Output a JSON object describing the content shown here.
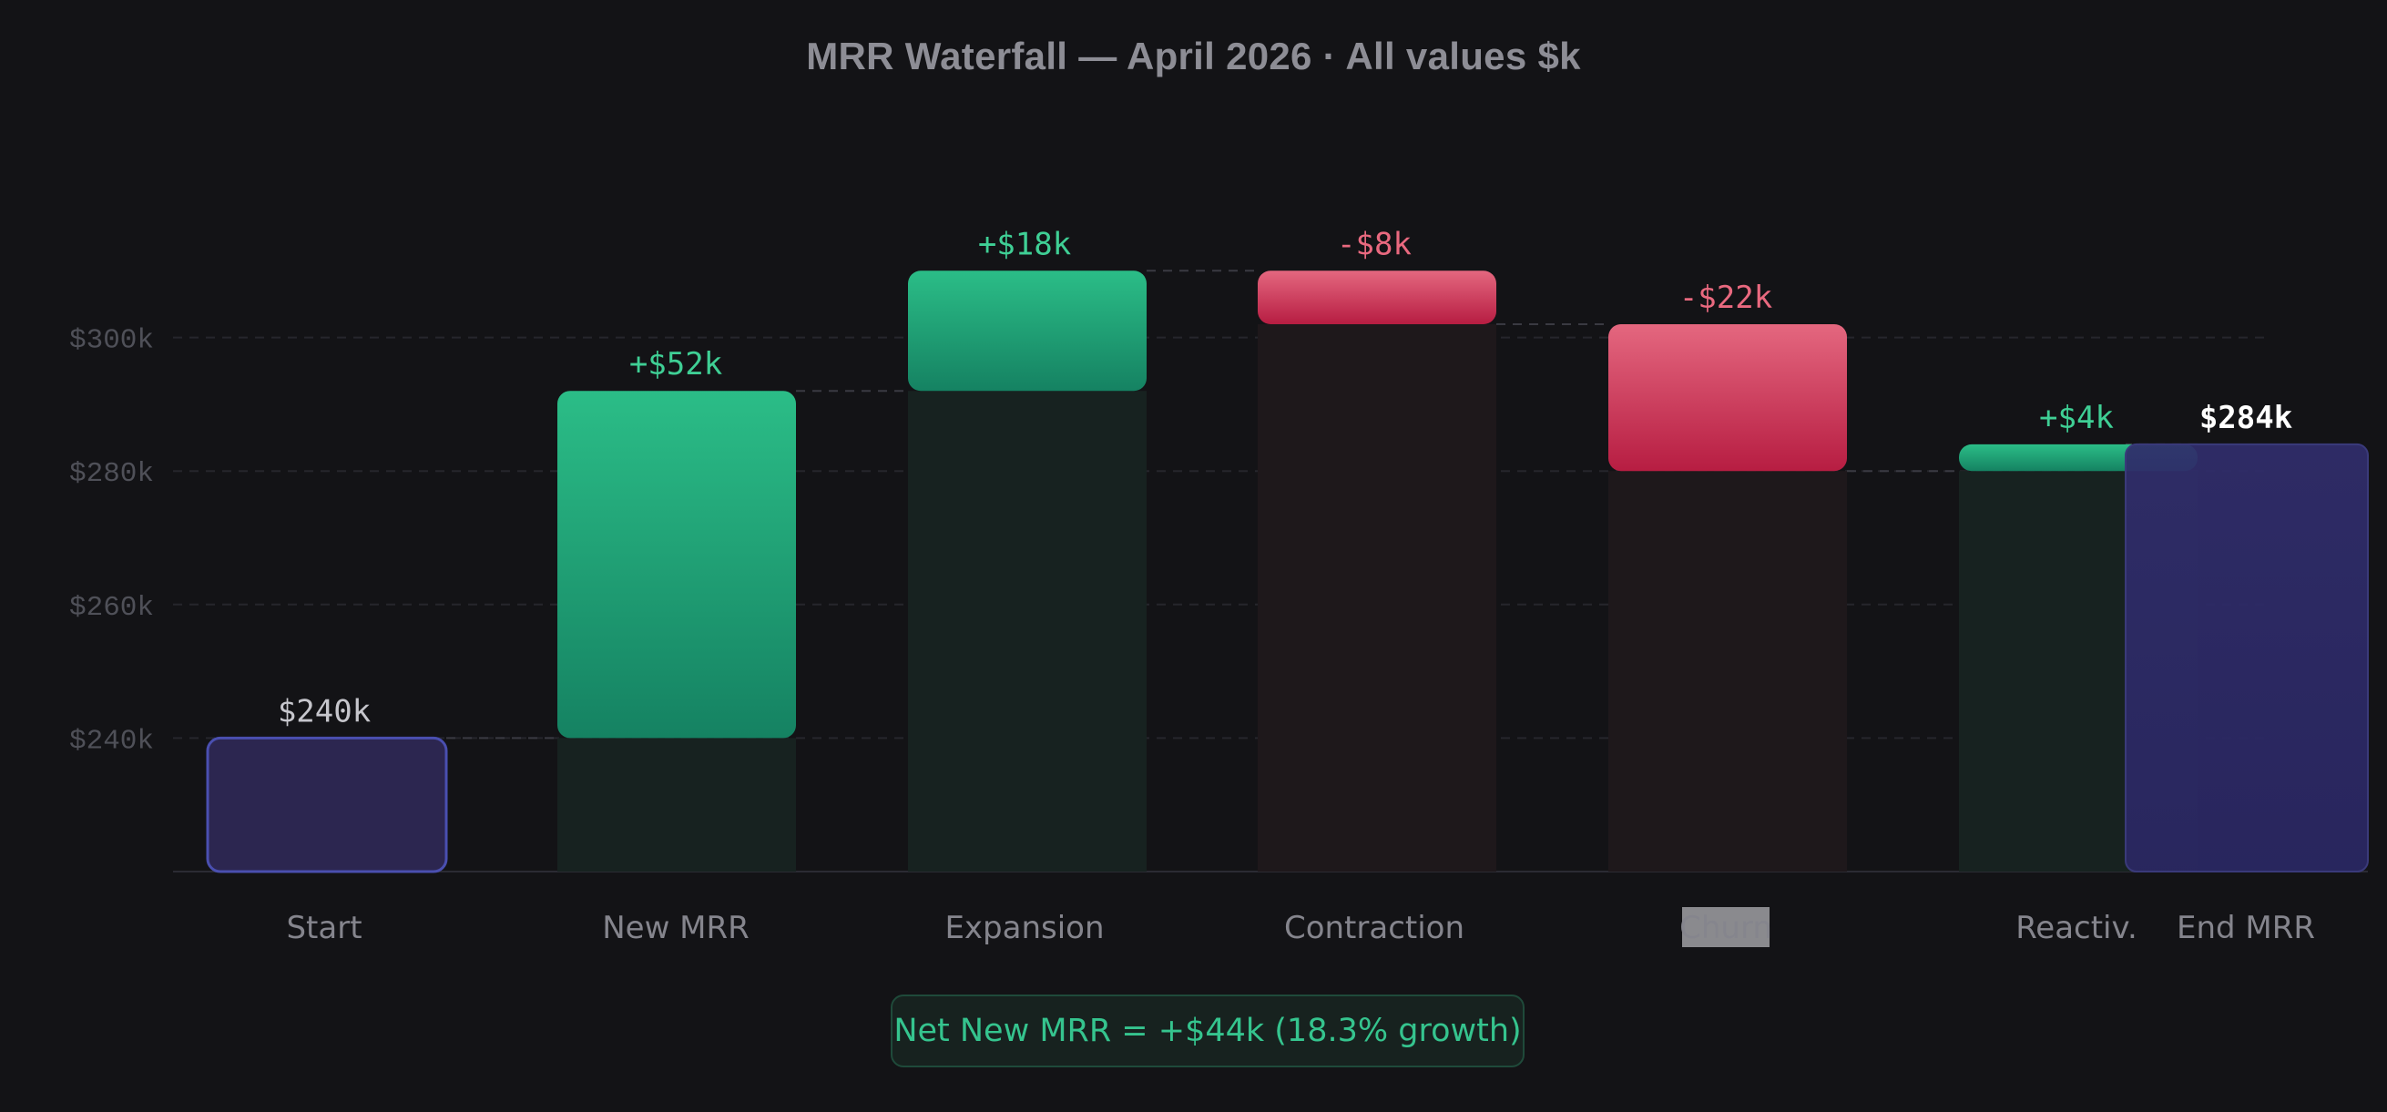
{
  "title": "MRR Waterfall — April 2026 · All values $k",
  "net_badge": "Net New MRR = +$44k (18.3% growth)",
  "colors": {
    "positive": "#2bb886",
    "negative": "#d0304f",
    "total": "#2c2650",
    "total_border": "#4a4fb0",
    "end_total": "#2f2c6a",
    "positive_label": "#3fcf95",
    "negative_label": "#e9697f",
    "start_label": "#c6c6cc",
    "end_label": "#ffffff"
  },
  "chart_data": {
    "type": "waterfall",
    "title": "MRR Waterfall — April 2026 · All values $k",
    "categories": [
      "Start",
      "New MRR",
      "Expansion",
      "Contraction",
      "Churn",
      "Reactiv.",
      "End MRR"
    ],
    "values": [
      240,
      52,
      18,
      -8,
      -22,
      4,
      284
    ],
    "kinds": [
      "total",
      "delta",
      "delta",
      "delta",
      "delta",
      "delta",
      "total"
    ],
    "value_labels": [
      "$240k",
      "+$52k",
      "+$18k",
      "-$8k",
      "-$22k",
      "+$4k",
      "$284k"
    ],
    "yticks": [
      240,
      260,
      280,
      300
    ],
    "ytick_labels": [
      "$240k",
      "$260k",
      "$280k",
      "$300k"
    ],
    "ylim": [
      220,
      310
    ],
    "grid": true,
    "highlighted_category": "Churn"
  }
}
